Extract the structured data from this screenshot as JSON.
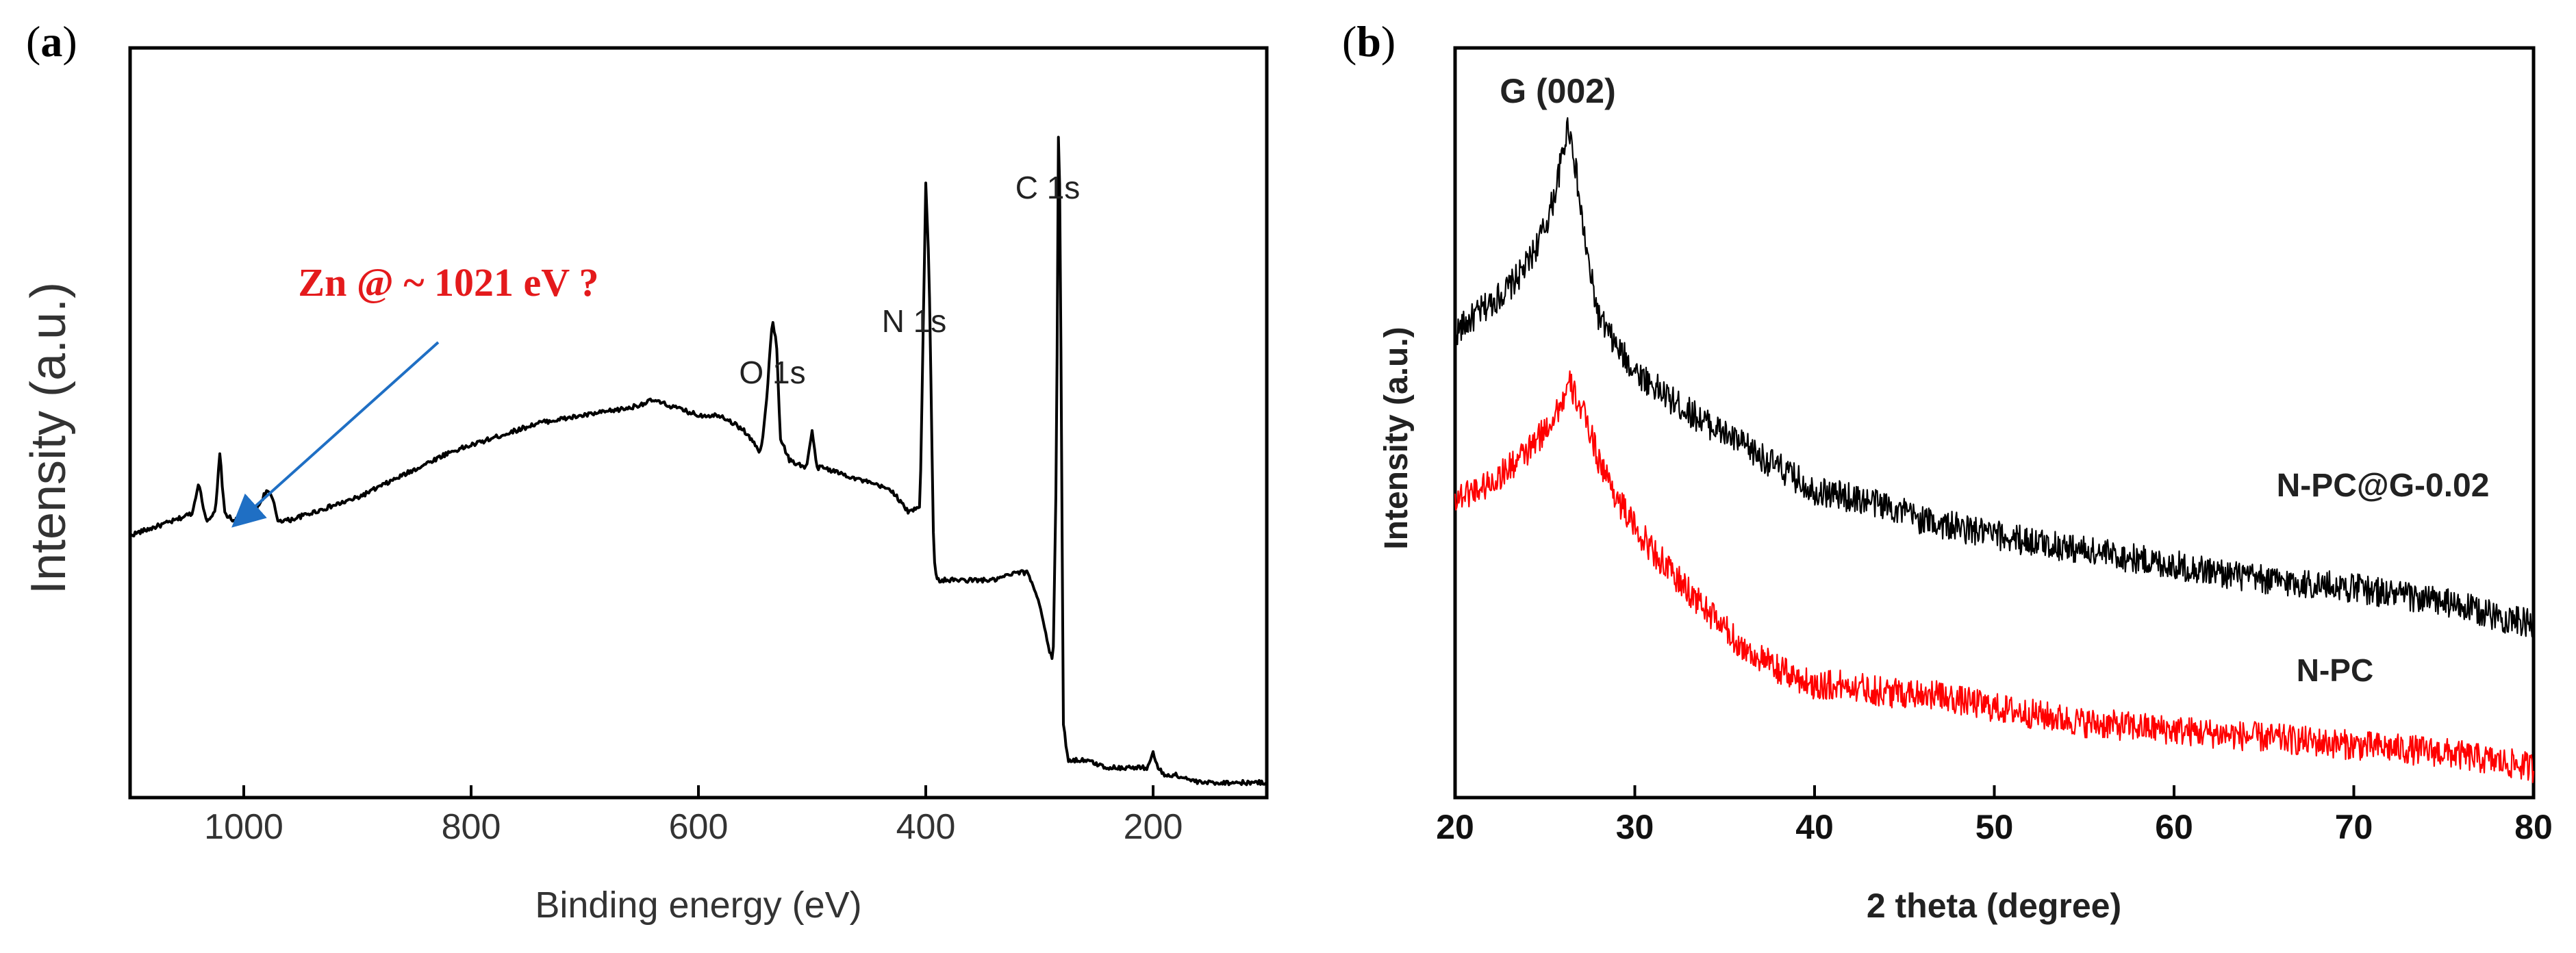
{
  "panels": {
    "a": {
      "label_open": "(",
      "label_letter": "a",
      "label_close": ")"
    },
    "b": {
      "label_open": "(",
      "label_letter": "b",
      "label_close": ")"
    }
  },
  "chart_data": [
    {
      "type": "line",
      "title": "",
      "xlabel": "Binding energy (eV)",
      "ylabel": "Intensity (a.u.)",
      "xlim": [
        1100,
        100
      ],
      "x_reversed": true,
      "y_ticks_shown": false,
      "xticks": [
        1000,
        800,
        600,
        400,
        200
      ],
      "series": [
        {
          "color": "#000000",
          "x": [
            1100,
            1080,
            1060,
            1045,
            1040,
            1033,
            1025,
            1021,
            1017,
            1010,
            1000,
            990,
            980,
            975,
            970,
            960,
            940,
            900,
            860,
            820,
            780,
            740,
            700,
            660,
            640,
            620,
            600,
            580,
            560,
            545,
            540,
            535,
            531,
            528,
            520,
            505,
            500,
            496,
            490,
            470,
            450,
            430,
            415,
            405,
            400,
            397,
            393,
            390,
            380,
            360,
            340,
            320,
            310,
            300,
            292,
            288,
            285,
            283,
            281,
            279,
            275,
            260,
            240,
            220,
            205,
            200,
            196,
            190,
            180,
            160,
            130,
            100
          ],
          "y": [
            0.35,
            0.36,
            0.37,
            0.38,
            0.42,
            0.37,
            0.38,
            0.46,
            0.38,
            0.37,
            0.37,
            0.38,
            0.41,
            0.4,
            0.37,
            0.37,
            0.38,
            0.4,
            0.43,
            0.46,
            0.48,
            0.5,
            0.51,
            0.52,
            0.53,
            0.52,
            0.51,
            0.51,
            0.49,
            0.46,
            0.53,
            0.64,
            0.6,
            0.48,
            0.45,
            0.44,
            0.49,
            0.44,
            0.44,
            0.43,
            0.42,
            0.41,
            0.38,
            0.39,
            0.82,
            0.7,
            0.32,
            0.29,
            0.29,
            0.29,
            0.29,
            0.3,
            0.3,
            0.26,
            0.2,
            0.18,
            0.45,
            0.97,
            0.58,
            0.1,
            0.05,
            0.05,
            0.04,
            0.04,
            0.04,
            0.06,
            0.04,
            0.03,
            0.03,
            0.02,
            0.02,
            0.02
          ]
        }
      ],
      "annotations": [
        "C 1s",
        "N 1s",
        "O 1s",
        "Zn @ ~ 1021 eV ?"
      ]
    },
    {
      "type": "line",
      "title": "",
      "xlabel": "2 theta (degree)",
      "ylabel": "Intensity (a.u.)",
      "xlim": [
        20,
        80
      ],
      "y_ticks_shown": false,
      "xticks": [
        20,
        30,
        40,
        50,
        60,
        70,
        80
      ],
      "series": [
        {
          "name": "N-PC@G-0.02",
          "color": "#000000",
          "x": [
            20,
            21,
            22,
            23,
            24,
            25,
            25.5,
            26,
            26.3,
            26.6,
            27,
            27.5,
            28,
            29,
            30,
            32,
            34,
            36,
            38,
            40,
            42,
            44,
            46,
            50,
            55,
            60,
            65,
            70,
            75,
            80
          ],
          "y": [
            0.62,
            0.64,
            0.66,
            0.68,
            0.71,
            0.76,
            0.8,
            0.86,
            0.9,
            0.86,
            0.78,
            0.7,
            0.64,
            0.6,
            0.57,
            0.53,
            0.5,
            0.47,
            0.44,
            0.41,
            0.4,
            0.39,
            0.37,
            0.35,
            0.33,
            0.31,
            0.29,
            0.28,
            0.26,
            0.23
          ]
        },
        {
          "name": "N-PC",
          "color": "#ff0000",
          "x": [
            20,
            21,
            22,
            23,
            24,
            25,
            25.5,
            26,
            26.4,
            26.8,
            27.5,
            28,
            29,
            30,
            32,
            34,
            36,
            38,
            40,
            42,
            44,
            46,
            50,
            55,
            60,
            65,
            70,
            75,
            80
          ],
          "y": [
            0.4,
            0.41,
            0.42,
            0.44,
            0.46,
            0.49,
            0.51,
            0.53,
            0.55,
            0.53,
            0.49,
            0.45,
            0.4,
            0.36,
            0.3,
            0.25,
            0.2,
            0.17,
            0.15,
            0.15,
            0.14,
            0.14,
            0.12,
            0.1,
            0.09,
            0.08,
            0.07,
            0.06,
            0.04
          ]
        }
      ],
      "annotations": [
        "G (002)",
        "N-PC@G-0.02",
        "N-PC"
      ]
    }
  ]
}
